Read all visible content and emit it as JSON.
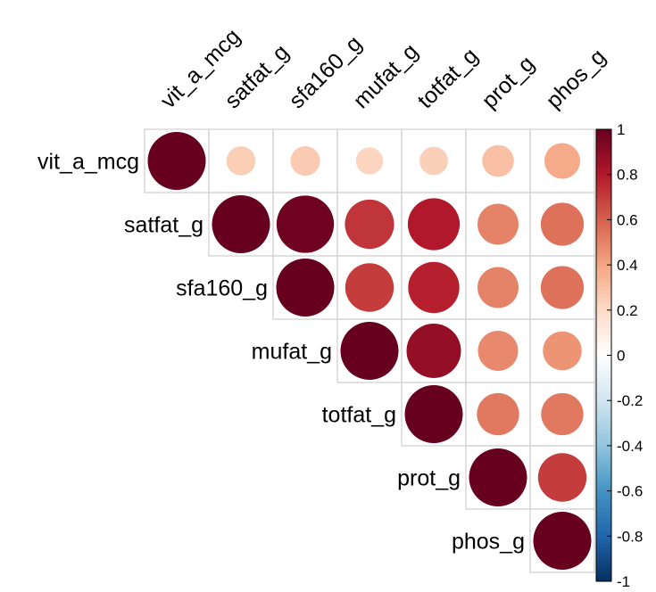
{
  "chart_data": {
    "type": "heatmap",
    "style": "corrplot upper-triangle circles",
    "variables": [
      "vit_a_mcg",
      "satfat_g",
      "sfa160_g",
      "mufat_g",
      "totfat_g",
      "prot_g",
      "phos_g"
    ],
    "matrix": [
      [
        1.0,
        0.25,
        0.26,
        0.22,
        0.24,
        0.3,
        0.38
      ],
      [
        null,
        1.0,
        0.98,
        0.72,
        0.8,
        0.5,
        0.55
      ],
      [
        null,
        null,
        1.0,
        0.7,
        0.78,
        0.5,
        0.55
      ],
      [
        null,
        null,
        null,
        1.0,
        0.88,
        0.48,
        0.45
      ],
      [
        null,
        null,
        null,
        null,
        1.0,
        0.53,
        0.53
      ],
      [
        null,
        null,
        null,
        null,
        null,
        1.0,
        0.7
      ],
      [
        null,
        null,
        null,
        null,
        null,
        null,
        1.0
      ]
    ],
    "colorbar": {
      "range": [
        -1,
        1
      ],
      "ticks": [
        "1",
        "0.8",
        "0.6",
        "0.4",
        "0.2",
        "0",
        "-0.2",
        "-0.4",
        "-0.6",
        "-0.8",
        "-1"
      ],
      "tick_values": [
        1,
        0.8,
        0.6,
        0.4,
        0.2,
        0,
        -0.2,
        -0.4,
        -0.6,
        -0.8,
        -1
      ],
      "colors": [
        "#67001F",
        "#B2182B",
        "#D6604D",
        "#F4A582",
        "#FDDBC7",
        "#FFFFFF",
        "#D1E5F0",
        "#92C5DE",
        "#4393C3",
        "#2166AC",
        "#053061"
      ]
    },
    "grid": true,
    "legend_position": "right"
  }
}
